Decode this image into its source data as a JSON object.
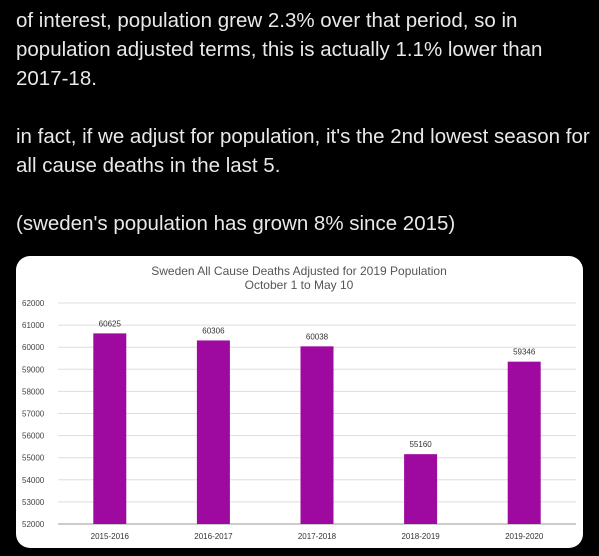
{
  "tweet": {
    "paragraphs": [
      "of interest, population grew 2.3% over that period, so in population adjusted terms, this is actually 1.1% lower than 2017-18.",
      "in fact, if we adjust for population, it's the 2nd lowest season for all cause deaths in the last 5.",
      "(sweden's population has grown 8% since 2015)"
    ]
  },
  "chart_data": {
    "type": "bar",
    "title": "Sweden All Cause Deaths Adjusted for 2019 Population",
    "subtitle": "October 1 to May 10",
    "xlabel": "",
    "ylabel": "",
    "categories": [
      "2015-2016",
      "2016-2017",
      "2017-2018",
      "2018-2019",
      "2019-2020"
    ],
    "values": [
      60625,
      60306,
      60038,
      55160,
      59346
    ],
    "data_labels": [
      "60625",
      "60306",
      "60038",
      "55160",
      "59346"
    ],
    "ylim": [
      52000,
      62000
    ],
    "yticks": [
      "52000",
      "53000",
      "54000",
      "55000",
      "56000",
      "57000",
      "58000",
      "59000",
      "60000",
      "61000",
      "62000"
    ],
    "grid": true,
    "bar_color": "#9e0aa0",
    "legend": "none"
  }
}
